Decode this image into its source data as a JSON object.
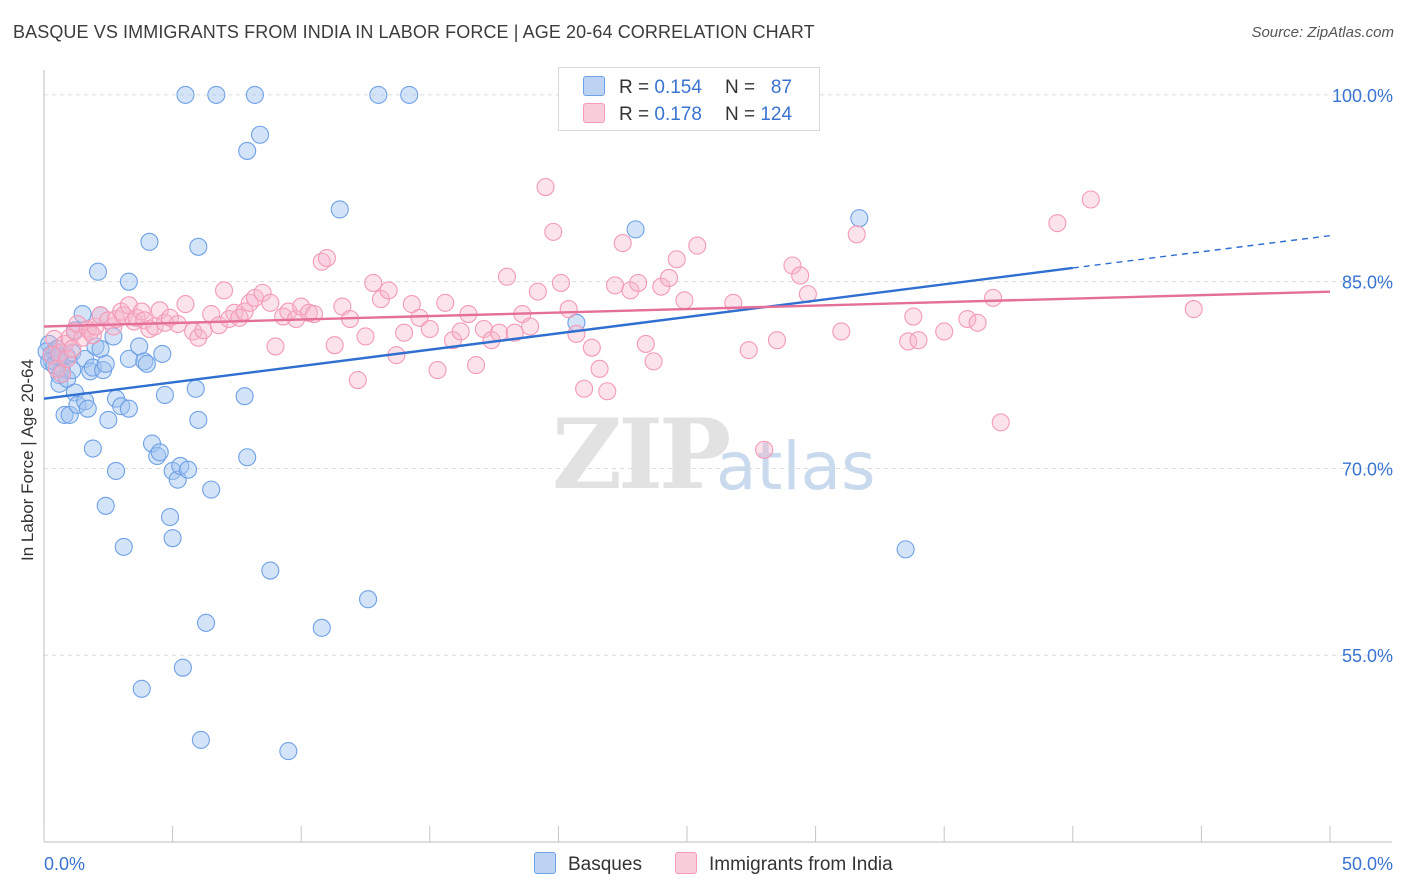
{
  "title": "BASQUE VS IMMIGRANTS FROM INDIA IN LABOR FORCE | AGE 20-64 CORRELATION CHART",
  "source": "Source: ZipAtlas.com",
  "watermark": {
    "zip": "ZIP",
    "atlas": "atlas"
  },
  "legend": {
    "r_label": "R =",
    "n_label": "N =",
    "rows": [
      {
        "r": "0.154",
        "n": "87"
      },
      {
        "r": "0.178",
        "n": "124"
      }
    ]
  },
  "bottom_legend": [
    "Basques",
    "Immigrants from India"
  ],
  "chart_data": {
    "type": "scatter",
    "title": "BASQUE VS IMMIGRANTS FROM INDIA IN LABOR FORCE | AGE 20-64 CORRELATION CHART",
    "xlabel": "",
    "ylabel": "In Labor Force | Age 20-64",
    "xlim": [
      0,
      50
    ],
    "ylim": [
      40,
      102
    ],
    "x_tick_labels": [
      "0.0%",
      "50.0%"
    ],
    "y_ticks": [
      55,
      70,
      85,
      100
    ],
    "y_tick_labels": [
      "55.0%",
      "70.0%",
      "85.0%",
      "100.0%"
    ],
    "grid": true,
    "legend_position": "top-center",
    "colors": {
      "basques": "#6fa1e6",
      "india": "#f39ab6",
      "basques_line": "#2f6fd0",
      "india_line": "#e46f98",
      "tick_text": "#3a74d0"
    },
    "series": [
      {
        "name": "Basques",
        "r": 0.154,
        "n": 87,
        "trend": {
          "x": [
            0,
            40
          ],
          "y": [
            75.6,
            86.1
          ],
          "dashed_to": [
            50,
            88.7
          ]
        },
        "points": [
          [
            0.2,
            80.0
          ],
          [
            0.3,
            79.2
          ],
          [
            0.3,
            78.7
          ],
          [
            0.4,
            79.4
          ],
          [
            0.5,
            78.9
          ],
          [
            0.5,
            79.6
          ],
          [
            0.6,
            77.5
          ],
          [
            0.6,
            76.8
          ],
          [
            0.7,
            78.0
          ],
          [
            0.8,
            74.3
          ],
          [
            0.9,
            77.2
          ],
          [
            0.9,
            79.0
          ],
          [
            1.0,
            74.3
          ],
          [
            1.1,
            77.9
          ],
          [
            1.1,
            79.3
          ],
          [
            1.2,
            81.1
          ],
          [
            1.2,
            76.1
          ],
          [
            1.3,
            75.1
          ],
          [
            1.5,
            82.4
          ],
          [
            1.6,
            78.8
          ],
          [
            1.6,
            75.4
          ],
          [
            1.7,
            74.8
          ],
          [
            1.8,
            77.8
          ],
          [
            1.9,
            71.6
          ],
          [
            1.9,
            78.1
          ],
          [
            2.0,
            79.8
          ],
          [
            2.1,
            85.8
          ],
          [
            2.2,
            79.6
          ],
          [
            2.2,
            82.3
          ],
          [
            2.3,
            77.9
          ],
          [
            2.4,
            78.4
          ],
          [
            2.4,
            67.0
          ],
          [
            2.5,
            73.9
          ],
          [
            2.7,
            80.6
          ],
          [
            2.8,
            75.6
          ],
          [
            2.8,
            69.8
          ],
          [
            3.0,
            75.0
          ],
          [
            3.1,
            63.7
          ],
          [
            3.3,
            78.8
          ],
          [
            3.3,
            74.8
          ],
          [
            3.3,
            85.0
          ],
          [
            3.7,
            79.8
          ],
          [
            3.8,
            52.3
          ],
          [
            3.9,
            78.6
          ],
          [
            4.0,
            78.4
          ],
          [
            4.1,
            88.2
          ],
          [
            4.2,
            72.0
          ],
          [
            4.4,
            71.0
          ],
          [
            4.5,
            71.3
          ],
          [
            4.6,
            79.2
          ],
          [
            4.7,
            75.9
          ],
          [
            4.9,
            66.1
          ],
          [
            5.0,
            69.8
          ],
          [
            5.0,
            64.4
          ],
          [
            5.2,
            69.1
          ],
          [
            5.3,
            70.2
          ],
          [
            5.4,
            54.0
          ],
          [
            5.5,
            100.0
          ],
          [
            5.6,
            69.9
          ],
          [
            5.9,
            76.4
          ],
          [
            6.0,
            73.9
          ],
          [
            6.0,
            87.8
          ],
          [
            6.1,
            48.2
          ],
          [
            6.3,
            57.6
          ],
          [
            6.5,
            68.3
          ],
          [
            6.7,
            100.0
          ],
          [
            7.8,
            75.8
          ],
          [
            7.9,
            70.9
          ],
          [
            7.9,
            95.5
          ],
          [
            8.2,
            100.0
          ],
          [
            8.4,
            96.8
          ],
          [
            8.8,
            61.8
          ],
          [
            9.5,
            47.3
          ],
          [
            10.8,
            57.2
          ],
          [
            11.5,
            90.8
          ],
          [
            12.6,
            59.5
          ],
          [
            13.0,
            100.0
          ],
          [
            14.2,
            100.0
          ],
          [
            20.7,
            81.7
          ],
          [
            23.0,
            89.2
          ],
          [
            29.1,
            100.0
          ],
          [
            31.7,
            90.1
          ],
          [
            33.5,
            63.5
          ],
          [
            0.1,
            79.4
          ],
          [
            0.2,
            78.6
          ],
          [
            0.4,
            78.3
          ],
          [
            0.6,
            79.0
          ]
        ]
      },
      {
        "name": "Immigrants from India",
        "r": 0.178,
        "n": 124,
        "trend": {
          "x": [
            0,
            50
          ],
          "y": [
            81.4,
            84.2
          ]
        },
        "points": [
          [
            0.3,
            79.1
          ],
          [
            0.4,
            80.4
          ],
          [
            0.5,
            78.0
          ],
          [
            0.6,
            79.3
          ],
          [
            0.7,
            77.6
          ],
          [
            0.8,
            80.0
          ],
          [
            0.9,
            78.8
          ],
          [
            1.0,
            80.5
          ],
          [
            1.1,
            79.6
          ],
          [
            1.2,
            81.0
          ],
          [
            1.3,
            81.6
          ],
          [
            1.5,
            80.5
          ],
          [
            1.7,
            81.2
          ],
          [
            1.8,
            81.0
          ],
          [
            1.9,
            80.7
          ],
          [
            2.0,
            81.4
          ],
          [
            2.2,
            82.3
          ],
          [
            2.5,
            81.9
          ],
          [
            2.7,
            81.4
          ],
          [
            2.8,
            82.0
          ],
          [
            3.0,
            82.6
          ],
          [
            3.1,
            82.3
          ],
          [
            3.3,
            83.1
          ],
          [
            3.5,
            81.8
          ],
          [
            3.6,
            82.1
          ],
          [
            3.8,
            82.6
          ],
          [
            3.9,
            81.9
          ],
          [
            4.1,
            81.2
          ],
          [
            4.3,
            81.4
          ],
          [
            4.5,
            82.7
          ],
          [
            4.7,
            81.7
          ],
          [
            4.9,
            82.1
          ],
          [
            5.2,
            81.6
          ],
          [
            5.5,
            83.2
          ],
          [
            5.8,
            81.0
          ],
          [
            6.0,
            80.5
          ],
          [
            6.2,
            81.1
          ],
          [
            6.5,
            82.4
          ],
          [
            6.8,
            81.5
          ],
          [
            7.0,
            84.3
          ],
          [
            7.2,
            82.0
          ],
          [
            7.4,
            82.5
          ],
          [
            7.6,
            82.1
          ],
          [
            7.8,
            82.6
          ],
          [
            8.0,
            83.3
          ],
          [
            8.2,
            83.7
          ],
          [
            8.5,
            84.1
          ],
          [
            8.8,
            83.3
          ],
          [
            9.0,
            79.8
          ],
          [
            9.3,
            82.2
          ],
          [
            9.5,
            82.6
          ],
          [
            9.8,
            82.0
          ],
          [
            10.0,
            83.0
          ],
          [
            10.3,
            82.5
          ],
          [
            10.5,
            82.4
          ],
          [
            10.8,
            86.6
          ],
          [
            11.0,
            86.9
          ],
          [
            11.3,
            79.9
          ],
          [
            11.6,
            83.0
          ],
          [
            11.9,
            82.0
          ],
          [
            12.2,
            77.1
          ],
          [
            12.5,
            80.6
          ],
          [
            12.8,
            84.9
          ],
          [
            13.1,
            83.6
          ],
          [
            13.4,
            84.3
          ],
          [
            13.7,
            79.1
          ],
          [
            14.0,
            80.9
          ],
          [
            14.3,
            83.2
          ],
          [
            14.6,
            82.1
          ],
          [
            15.0,
            81.2
          ],
          [
            15.3,
            77.9
          ],
          [
            15.6,
            83.3
          ],
          [
            15.9,
            80.3
          ],
          [
            16.2,
            81.0
          ],
          [
            16.5,
            82.4
          ],
          [
            16.8,
            78.3
          ],
          [
            17.1,
            81.2
          ],
          [
            17.4,
            80.3
          ],
          [
            17.7,
            80.9
          ],
          [
            18.0,
            85.4
          ],
          [
            18.3,
            80.9
          ],
          [
            18.6,
            82.4
          ],
          [
            18.9,
            81.4
          ],
          [
            19.2,
            84.2
          ],
          [
            19.5,
            92.6
          ],
          [
            19.8,
            89.0
          ],
          [
            20.1,
            84.9
          ],
          [
            20.4,
            82.8
          ],
          [
            20.7,
            80.8
          ],
          [
            21.0,
            76.4
          ],
          [
            21.3,
            79.7
          ],
          [
            21.6,
            78.0
          ],
          [
            21.9,
            76.2
          ],
          [
            22.2,
            84.7
          ],
          [
            22.5,
            88.1
          ],
          [
            22.8,
            84.3
          ],
          [
            23.1,
            84.9
          ],
          [
            23.4,
            80.0
          ],
          [
            23.7,
            78.6
          ],
          [
            24.0,
            84.6
          ],
          [
            24.3,
            85.3
          ],
          [
            24.6,
            86.8
          ],
          [
            24.9,
            83.5
          ],
          [
            25.4,
            87.9
          ],
          [
            26.8,
            83.3
          ],
          [
            27.4,
            79.5
          ],
          [
            28.0,
            71.5
          ],
          [
            28.5,
            80.3
          ],
          [
            29.1,
            86.3
          ],
          [
            29.4,
            85.5
          ],
          [
            29.7,
            84.0
          ],
          [
            31.0,
            81.0
          ],
          [
            31.6,
            88.8
          ],
          [
            33.6,
            80.2
          ],
          [
            33.8,
            82.2
          ],
          [
            34.0,
            80.3
          ],
          [
            35.0,
            81.0
          ],
          [
            35.9,
            82.0
          ],
          [
            36.3,
            81.7
          ],
          [
            36.9,
            83.7
          ],
          [
            37.2,
            73.7
          ],
          [
            39.4,
            89.7
          ],
          [
            40.7,
            91.6
          ],
          [
            44.7,
            82.8
          ]
        ]
      }
    ]
  }
}
